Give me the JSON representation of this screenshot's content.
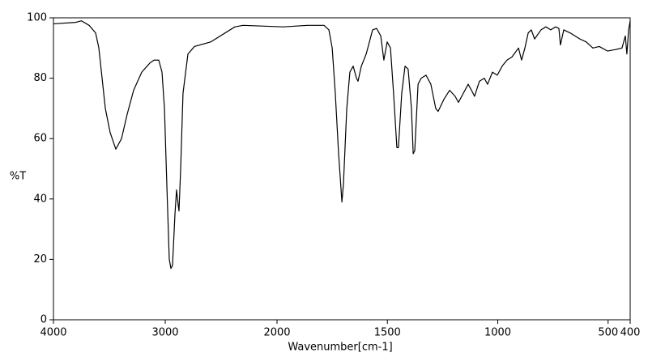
{
  "chart_data": {
    "type": "line",
    "x_label": "Wavenumber[cm-1]",
    "y_label": "%T",
    "xlim": [
      4000,
      400
    ],
    "x_scale_break": 2000,
    "xticks": [
      4000,
      3000,
      2000,
      1500,
      1000,
      500,
      400
    ],
    "ylim": [
      0,
      100
    ],
    "yticks": [
      0,
      20,
      40,
      60,
      80,
      100
    ],
    "color": "#000000",
    "x": [
      4000,
      3800,
      3750,
      3681,
      3623,
      3594,
      3565,
      3536,
      3493,
      3442,
      3391,
      3341,
      3283,
      3210,
      3138,
      3101,
      3058,
      3029,
      3007,
      2986,
      2964,
      2949,
      2935,
      2913,
      2899,
      2884,
      2877,
      2862,
      2841,
      2797,
      2739,
      2594,
      2377,
      2304,
      2087,
      1971,
      1861,
      1787,
      1765,
      1750,
      1736,
      1721,
      1706,
      1699,
      1684,
      1670,
      1655,
      1640,
      1633,
      1618,
      1596,
      1567,
      1549,
      1530,
      1516,
      1501,
      1486,
      1472,
      1457,
      1450,
      1435,
      1420,
      1406,
      1391,
      1383,
      1376,
      1361,
      1347,
      1325,
      1303,
      1281,
      1270,
      1244,
      1218,
      1193,
      1178,
      1156,
      1134,
      1119,
      1105,
      1083,
      1061,
      1046,
      1024,
      1002,
      980,
      958,
      936,
      906,
      892,
      877,
      862,
      848,
      833,
      804,
      782,
      760,
      738,
      723,
      716,
      701,
      672,
      628,
      599,
      569,
      540,
      503,
      466,
      437,
      422,
      415,
      407,
      400
    ],
    "values": [
      98,
      98.5,
      99,
      97.5,
      95,
      90,
      80,
      70,
      62,
      56.5,
      60,
      68,
      76,
      82,
      85,
      86,
      86,
      82,
      70,
      45,
      20,
      17,
      18,
      35,
      43,
      38,
      36,
      50,
      75,
      88,
      90.5,
      92,
      97,
      97.5,
      97.2,
      97,
      97.5,
      97.5,
      96,
      90,
      75,
      55,
      39,
      45,
      70,
      82,
      84,
      80,
      79,
      84,
      88,
      96,
      96.5,
      94,
      86,
      92,
      90,
      75,
      57,
      57,
      75,
      84,
      83,
      70,
      55,
      56,
      78,
      80,
      81,
      78,
      70,
      69,
      73,
      76,
      74,
      72,
      75,
      78,
      76,
      74,
      79,
      80,
      78,
      82,
      81,
      84,
      86,
      87,
      90,
      86,
      90,
      95,
      96,
      93,
      96,
      97,
      96,
      97,
      96.5,
      91,
      96,
      95,
      93,
      92,
      90,
      90.5,
      89,
      89.5,
      90,
      94,
      88,
      96,
      99
    ]
  }
}
